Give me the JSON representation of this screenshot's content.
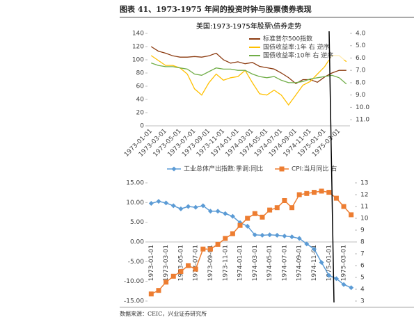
{
  "header": {
    "title": "图表 41、1973-1975 年间的投资时钟与股票债券表现"
  },
  "chart_data": [
    {
      "type": "line",
      "title": "美国:1973-1975年股票\\债券走势",
      "categories": [
        "1973-01-01",
        null,
        "1973-03-01",
        null,
        "1973-05-01",
        null,
        "1973-07-01",
        null,
        "1973-09-01",
        null,
        "1973-11-01",
        null,
        "1974-01-01",
        null,
        "1974-03-01",
        null,
        "1974-05-01",
        null,
        "1974-07-01",
        null,
        "1974-09-01",
        null,
        "1974-11-01",
        null,
        "1975-01-01",
        null,
        "1975-03-01",
        null
      ],
      "series": [
        {
          "name": "标准普尔500指数",
          "color": "#8b3a0f",
          "values": [
            120,
            113,
            110,
            106,
            104,
            104,
            105,
            104,
            106,
            110,
            100,
            95,
            97,
            94,
            96,
            90,
            88,
            86,
            80,
            73,
            64,
            70,
            70,
            66,
            74,
            80,
            84,
            84
          ]
        },
        {
          "name": "国债收益率:1年 右 逆序",
          "color": "#ffc000",
          "axis": "y2",
          "values": [
            5.8,
            6.2,
            6.6,
            6.6,
            6.8,
            7.3,
            8.5,
            9.0,
            8.0,
            7.3,
            7.8,
            7.6,
            7.5,
            7.0,
            8.0,
            8.9,
            9.0,
            8.6,
            9.0,
            9.8,
            9.0,
            8.2,
            7.9,
            7.3,
            6.7,
            5.8,
            5.8,
            6.3
          ]
        },
        {
          "name": "国债收益率:10年 右 逆序",
          "color": "#70ad47",
          "axis": "y2",
          "values": [
            6.4,
            6.6,
            6.7,
            6.7,
            6.8,
            6.9,
            7.3,
            7.4,
            7.1,
            6.8,
            6.9,
            6.9,
            7.0,
            7.0,
            7.3,
            7.5,
            7.6,
            7.5,
            7.8,
            8.0,
            8.0,
            7.9,
            7.7,
            7.6,
            7.5,
            7.4,
            7.6,
            8.1
          ]
        }
      ],
      "ylim": [
        0,
        140
      ],
      "yticks": [
        0,
        20,
        40,
        60,
        80,
        100,
        120,
        140
      ],
      "y2lim": [
        4,
        11.5
      ],
      "y2_inverted": true,
      "y2ticks": [
        {
          "value": 4,
          "label": "4.0"
        },
        {
          "value": 5,
          "label": "5.0"
        },
        {
          "value": 6,
          "label": "6.0"
        },
        {
          "value": 7,
          "label": "7.0"
        },
        {
          "value": 8,
          "label": "8.0"
        },
        {
          "value": 9,
          "label": "9.0"
        },
        {
          "value": 10,
          "label": "10.0"
        },
        {
          "value": 11,
          "label": "11.0"
        }
      ],
      "grid": false,
      "legend": "top-right"
    },
    {
      "type": "line",
      "categories": [
        "1973-01-01",
        null,
        "1973-03-01",
        null,
        "1973-05-01",
        null,
        "1973-07-01",
        null,
        "1973-09-01",
        null,
        "1973-11-01",
        null,
        "1974-01-01",
        null,
        "1974-03-01",
        null,
        "1974-05-01",
        null,
        "1974-07-01",
        null,
        "1974-09-01",
        null,
        "1974-11-01",
        null,
        "1975-01-01",
        null,
        "1975-03-01",
        null
      ],
      "series": [
        {
          "name": "工业总体产出指数:季调:同比",
          "color": "#5b9bd5",
          "marker": "diamond",
          "values": [
            9.8,
            10.3,
            9.9,
            9.2,
            8.4,
            9.0,
            8.8,
            9.2,
            7.8,
            7.8,
            7.2,
            6.5,
            4.9,
            4.0,
            1.8,
            1.7,
            1.8,
            1.7,
            1.5,
            1.3,
            0.9,
            -0.5,
            -1.8,
            -5.2,
            -8.5,
            -9.3,
            -10.8,
            -11.6
          ]
        },
        {
          "name": "CPI:当月同比 右",
          "color": "#ed7d31",
          "marker": "square",
          "axis": "y2",
          "values": [
            3.6,
            3.9,
            4.6,
            5.1,
            5.5,
            6.0,
            5.7,
            7.4,
            7.4,
            7.8,
            8.3,
            8.7,
            9.4,
            10.0,
            10.4,
            10.1,
            10.7,
            10.9,
            11.5,
            10.9,
            12.0,
            12.1,
            12.2,
            12.3,
            12.2,
            11.7,
            11.0,
            10.3
          ]
        }
      ],
      "ylim": [
        -15,
        15
      ],
      "yticks": [
        {
          "value": -15,
          "label": "-15.00"
        },
        {
          "value": -10,
          "label": "-10.00"
        },
        {
          "value": -5,
          "label": "-5.00"
        },
        {
          "value": 0,
          "label": "0.00"
        },
        {
          "value": 5,
          "label": "5.00"
        },
        {
          "value": 10,
          "label": "10.00"
        },
        {
          "value": 15,
          "label": "15.00"
        }
      ],
      "y2lim": [
        3,
        13
      ],
      "y2ticks": [
        3,
        4,
        5,
        6,
        7,
        8,
        9,
        10,
        11,
        12,
        13
      ],
      "grid": false,
      "legend": "top"
    }
  ],
  "footer": {
    "source": "数据来源：CEIC，兴业证券研究所"
  }
}
